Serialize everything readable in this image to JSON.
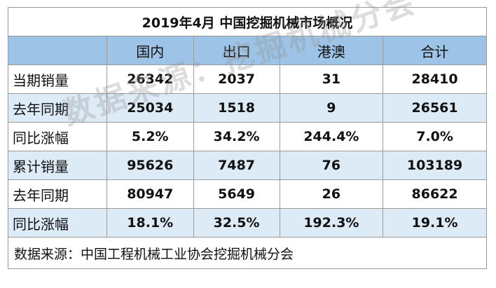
{
  "title": "2019年4月  中国挖掘机械市场概况",
  "columns": [
    "国内",
    "出口",
    "港澳",
    "合计"
  ],
  "rows": [
    {
      "label": "当期销量",
      "values": [
        "26342",
        "2037",
        "31",
        "28410"
      ]
    },
    {
      "label": "去年同期",
      "values": [
        "25034",
        "1518",
        "9",
        "26561"
      ]
    },
    {
      "label": "同比涨幅",
      "values": [
        "5.2%",
        "34.2%",
        "244.4%",
        "7.0%"
      ]
    },
    {
      "label": "累计销量",
      "values": [
        "95626",
        "7487",
        "76",
        "103189"
      ]
    },
    {
      "label": "去年同期",
      "values": [
        "80947",
        "5649",
        "26",
        "86622"
      ]
    },
    {
      "label": "同比涨幅",
      "values": [
        "18.1%",
        "32.5%",
        "192.3%",
        "19.1%"
      ]
    }
  ],
  "source": "数据来源：中国工程机械工业协会挖掘机械分会",
  "watermark": "数据来源：挖掘机械分会",
  "colors": {
    "header": "#9dc3e6",
    "shaded_row": "#ddebf7",
    "border": "#9a9a9a"
  }
}
